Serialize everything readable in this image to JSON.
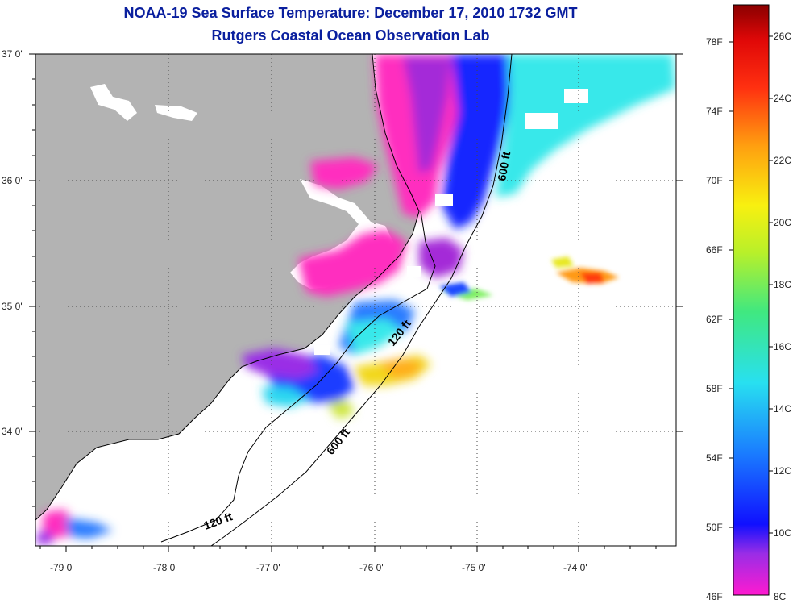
{
  "title": {
    "line1": "NOAA-19 Sea Surface Temperature:  December 17, 2010 1732 GMT",
    "line2": "Rutgers Coastal Ocean Observation Lab"
  },
  "map": {
    "lat_labels": [
      "37 0'",
      "36 0'",
      "35 0'",
      "34 0'"
    ],
    "lon_labels": [
      "-79 0'",
      "-78 0'",
      "-77 0'",
      "-76 0'",
      "-75 0'",
      "-74 0'"
    ],
    "contours": [
      "600 ft",
      "120 ft",
      "600 ft",
      "120 ft"
    ]
  },
  "colorbar": {
    "f_labels": [
      "78F",
      "74F",
      "70F",
      "66F",
      "62F",
      "58F",
      "54F",
      "50F",
      "46F"
    ],
    "c_labels": [
      "26C",
      "24C",
      "22C",
      "20C",
      "18C",
      "16C",
      "14C",
      "12C",
      "10C",
      "8C"
    ]
  },
  "colors": {
    "title": "#0a1f9e",
    "land": "#b3b3b3",
    "ocean": "#ffffff"
  }
}
